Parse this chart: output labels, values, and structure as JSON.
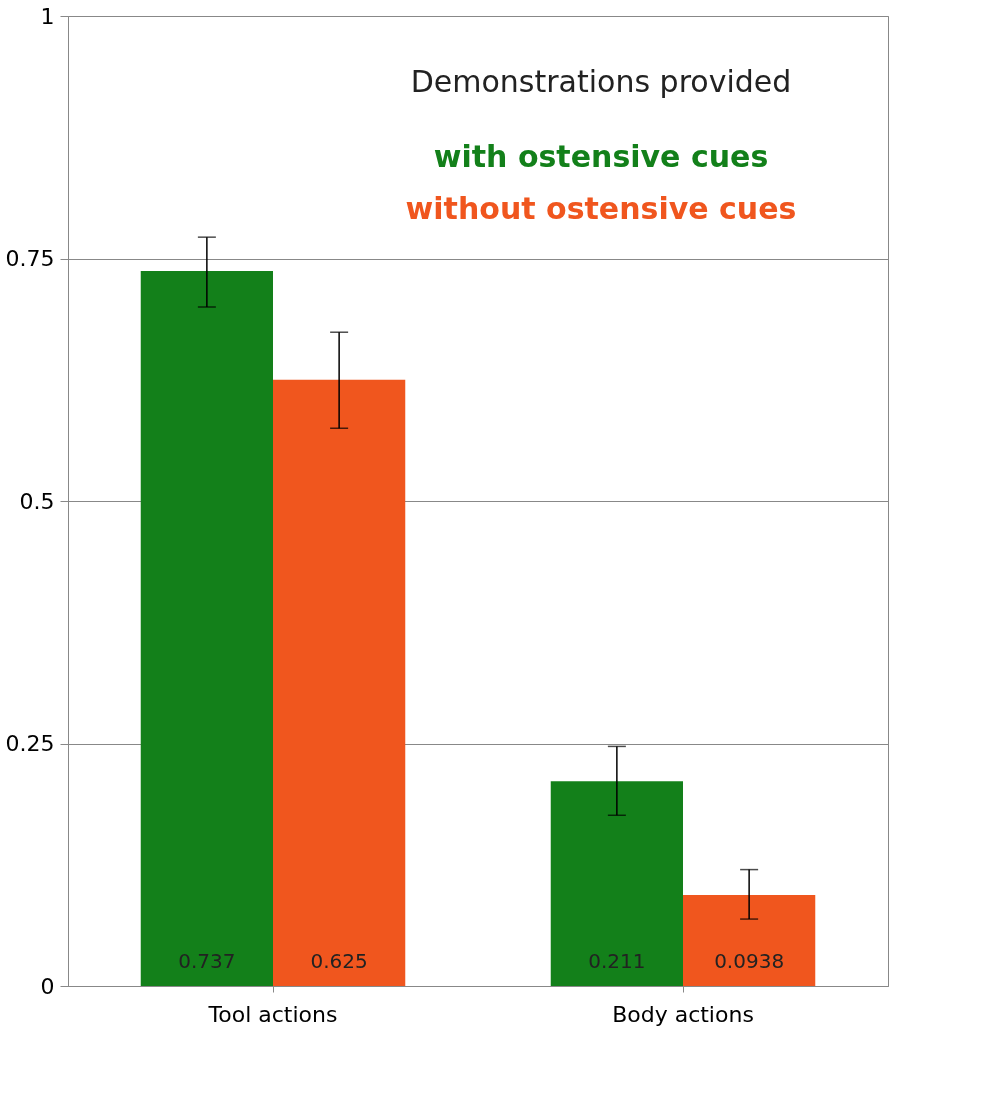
{
  "chart_data": {
    "type": "bar",
    "categories": [
      "Tool actions",
      "Body actions"
    ],
    "series": [
      {
        "name": "with ostensive cues",
        "color": "#13801a",
        "values": [
          0.737,
          0.211
        ],
        "errors": [
          [
            0.7,
            0.772
          ],
          [
            0.176,
            0.247
          ]
        ]
      },
      {
        "name": "without ostensive cues",
        "color": "#f0561e",
        "values": [
          0.625,
          0.0938
        ],
        "errors": [
          [
            0.575,
            0.674
          ],
          [
            0.069,
            0.12
          ]
        ]
      }
    ],
    "legend_title": "Demonstrations provided",
    "legend": "top right",
    "ylim": [
      0,
      1
    ],
    "yticks": [
      0,
      0.25,
      0.5,
      0.75,
      1
    ],
    "grid": "y",
    "data_labels": true
  }
}
